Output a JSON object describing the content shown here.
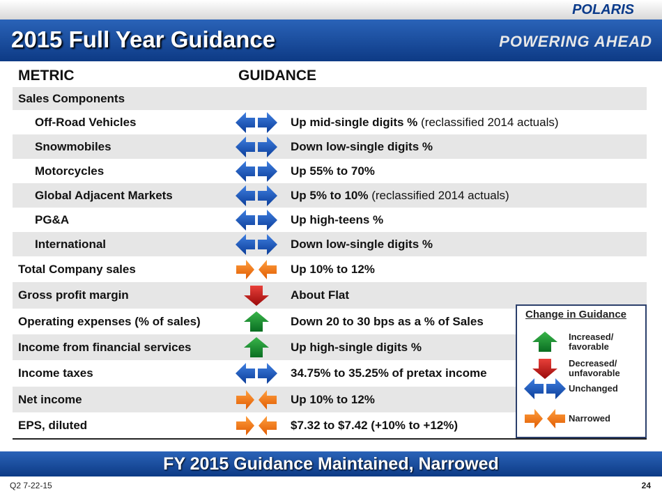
{
  "header": {
    "title": "2015 Full Year Guidance",
    "logo": "POLARIS",
    "tagline": "POWERING AHEAD"
  },
  "table": {
    "columns": [
      "METRIC",
      "GUIDANCE"
    ],
    "rows": [
      {
        "metric": "Sales Components"
      },
      {
        "metric": "Off-Road Vehicles",
        "guidance": "Up mid-single digits %",
        "note": "(reclassified 2014 actuals)"
      },
      {
        "metric": "Snowmobiles",
        "guidance": "Down low-single digits %"
      },
      {
        "metric": "Motorcycles",
        "guidance": "Up 55% to 70%"
      },
      {
        "metric": "Global Adjacent Markets",
        "guidance": "Up 5% to 10%",
        "note": "(reclassified 2014 actuals)"
      },
      {
        "metric": "PG&A",
        "guidance": "Up high-teens %"
      },
      {
        "metric": "International",
        "guidance": "Down low-single digits %"
      },
      {
        "metric": "Total Company sales",
        "guidance": "Up 10% to 12%"
      },
      {
        "metric": "Gross profit margin",
        "guidance": "About Flat"
      },
      {
        "metric": "Operating expenses (% of sales)",
        "guidance": "Down 20 to 30 bps as a % of Sales"
      },
      {
        "metric": "Income from financial services",
        "guidance": "Up high-single digits %"
      },
      {
        "metric": "Income taxes",
        "guidance": "34.75% to 35.25% of pretax income"
      },
      {
        "metric": "Net income",
        "guidance": "Up 10% to 12%"
      },
      {
        "metric": "EPS, diluted",
        "guidance": "$7.32 to $7.42 (+10% to +12%)"
      }
    ]
  },
  "legend": {
    "title": "Change in Guidance",
    "items": [
      "Increased/ favorable",
      "Decreased/ unfavorable",
      "Unchanged",
      "Narrowed"
    ]
  },
  "banner": "FY 2015 Guidance Maintained, Narrowed",
  "footer": {
    "date": "Q2 7-22-15",
    "page": "24"
  }
}
